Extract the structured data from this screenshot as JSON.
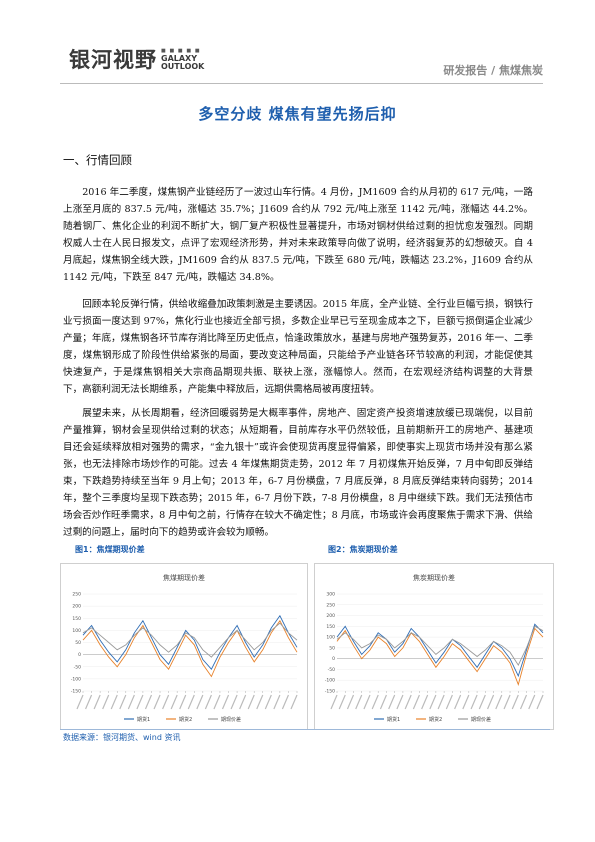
{
  "header": {
    "logo_cn": "银河视野",
    "logo_en_line1": "GALAXY",
    "logo_en_line2": "OUTLOOK",
    "report_type": "研发报告 / 焦煤焦炭"
  },
  "title": "多空分歧 煤焦有望先扬后抑",
  "section_heading": "一、行情回顾",
  "paragraphs": [
    "2016 年二季度，煤焦钢产业链经历了一波过山车行情。4 月份，JM1609 合约从月初的 617 元/吨，一路上涨至月底的 837.5 元/吨，涨幅达 35.7%；J1609 合约从 792 元/吨上涨至 1142 元/吨，涨幅达 44.2%。随着钢厂、焦化企业的利润不断扩大，钢厂复产积极性显著提升，市场对钢材供给过剩的担忧愈发强烈。同期权威人士在人民日报发文，点评了宏观经济形势，并对未来政策导向做了说明，经济弱复苏的幻想破灭。自 4 月底起，煤焦钢全线大跌，JM1609 合约从 837.5 元/吨，下跌至 680 元/吨，跌幅达 23.2%，J1609 合约从 1142 元/吨，下跌至 847 元/吨，跌幅达 34.8%。",
    "回顾本轮反弹行情，供给收缩叠加政策刺激是主要诱因。2015 年底，全产业链、全行业巨幅亏损，钢铁行业亏损面一度达到 97%，焦化行业也接近全部亏损，多数企业早已亏至现金成本之下，巨额亏损倒逼企业减少产量；年底，煤焦钢各环节库存消比降至历史低点，恰逢政策放水，基建与房地产强势复苏，2016 年一、二季度，煤焦钢形成了阶段性供给紧张的局面，要改变这种局面，只能给予产业链各环节较高的利润，才能促使其快速复产，于是煤焦钢相关大宗商品期现共振、联袂上涨，涨幅惊人。然而，在宏观经济结构调整的大背景下，高额利润无法长期维系，产能集中释放后，远期供需格局被再度扭转。",
    "展望未来，从长周期看，经济回暖弱势是大概率事件，房地产、固定资产投资增速放缓已现端倪，以目前产量推算，钢材会呈现供给过剩的状态；从短期看，目前库存水平仍然较低，且前期新开工的房地产、基建项目还会延续释放相对强势的需求，“金九银十”或许会使现货再度显得偏紧，即使事实上现货市场并没有那么紧张，也无法排除市场炒作的可能。过去 4 年煤焦期货走势，2012 年 7 月初煤焦开始反弹，7 月中旬即反弹结束，下跌趋势持续至当年 9 月上旬；2013 年，6-7 月份横盘，7 月底反弹，8 月底反弹结束转向弱势；2014 年，整个三季度均呈现下跌态势；2015 年，6-7 月份下跌，7-8 月份横盘，8 月中继续下跌。我们无法预估市场会否炒作旺季需求，8 月中旬之前，行情存在较大不确定性；8 月底，市场或许会再度聚焦于需求下滑、供给过剩的问题上，届时向下的趋势或许会较为顺畅。"
  ],
  "figures": [
    {
      "label": "图1：焦煤期现价差",
      "chart_title": "焦煤期现价差",
      "legend": [
        "期货1",
        "期货2",
        "期现价差"
      ]
    },
    {
      "label": "图2：焦炭期现价差",
      "chart_title": "焦炭期现价差",
      "legend": [
        "期货1",
        "期货2",
        "期现价差"
      ]
    }
  ],
  "source": "数据来源：银河期货、wind 资讯",
  "colors": {
    "title_blue": "#1f5fae",
    "series_blue": "#2f6db5",
    "series_orange": "#e8822a",
    "series_gray": "#9a9a9a"
  },
  "chart_data": [
    {
      "type": "line",
      "title": "焦煤期现价差",
      "ylim": [
        -150,
        250
      ],
      "yticks": [
        250,
        200,
        150,
        100,
        50,
        0,
        -50,
        -100,
        -150
      ],
      "series": [
        {
          "name": "期货1",
          "values": [
            80,
            120,
            60,
            10,
            -30,
            20,
            90,
            140,
            70,
            0,
            -40,
            30,
            100,
            60,
            -20,
            -60,
            10,
            70,
            120,
            50,
            -10,
            40,
            110,
            160,
            90,
            30
          ]
        },
        {
          "name": "期货2",
          "values": [
            60,
            100,
            40,
            -10,
            -50,
            0,
            70,
            120,
            50,
            -20,
            -60,
            10,
            80,
            40,
            -40,
            -90,
            -10,
            50,
            100,
            30,
            -30,
            20,
            90,
            140,
            70,
            10
          ]
        },
        {
          "name": "期现价差",
          "values": [
            90,
            110,
            80,
            50,
            20,
            40,
            80,
            110,
            80,
            40,
            10,
            40,
            90,
            70,
            20,
            -10,
            30,
            70,
            100,
            60,
            20,
            50,
            100,
            130,
            90,
            60
          ]
        }
      ]
    },
    {
      "type": "line",
      "title": "焦炭期现价差",
      "ylim": [
        -150,
        300
      ],
      "yticks": [
        300,
        250,
        200,
        150,
        100,
        50,
        0,
        -50,
        -100,
        -150
      ],
      "series": [
        {
          "name": "期货1",
          "values": [
            100,
            150,
            80,
            20,
            60,
            120,
            90,
            30,
            70,
            140,
            100,
            40,
            -20,
            30,
            90,
            60,
            10,
            -40,
            20,
            80,
            50,
            0,
            -80,
            40,
            160,
            120
          ]
        },
        {
          "name": "期货2",
          "values": [
            80,
            130,
            60,
            0,
            40,
            100,
            70,
            10,
            50,
            120,
            80,
            20,
            -40,
            10,
            70,
            40,
            -10,
            -60,
            0,
            60,
            30,
            -20,
            -120,
            20,
            140,
            100
          ]
        },
        {
          "name": "期现价差",
          "values": [
            90,
            120,
            90,
            50,
            70,
            110,
            90,
            50,
            80,
            120,
            100,
            60,
            20,
            50,
            90,
            70,
            40,
            10,
            40,
            80,
            60,
            30,
            -30,
            50,
            150,
            130
          ]
        }
      ]
    }
  ]
}
